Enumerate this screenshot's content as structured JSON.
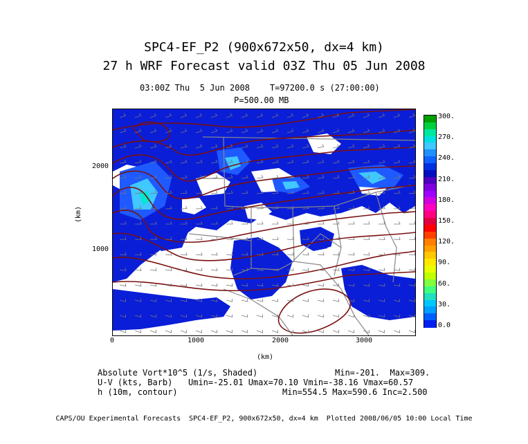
{
  "title": {
    "line1": "SPC4-EF_P2 (900x672x50, dx=4 km)",
    "line2": "27 h WRF Forecast valid 03Z Thu 05 Jun 2008"
  },
  "header": {
    "time_line": "03:00Z Thu  5 Jun 2008    T=97200.0 s (27:00:00)",
    "level": "P=500.00 MB"
  },
  "axes": {
    "y_label": "(km)",
    "x_label": "(km)",
    "x_ticks": [
      "0",
      "1000",
      "2000",
      "3000"
    ],
    "y_ticks": [
      "1000",
      "2000"
    ],
    "x_range": [
      0,
      3600
    ],
    "y_range": [
      0,
      2688
    ]
  },
  "colorbar": {
    "labels": [
      "300.",
      "270.",
      "240.",
      "210.",
      "180.",
      "150.",
      "120.",
      "90.",
      "60.",
      "30.",
      "0.0"
    ],
    "colors": [
      "#00a000",
      "#00d040",
      "#00e8a0",
      "#00e0e0",
      "#40c8ff",
      "#2090ff",
      "#1060ff",
      "#0030e0",
      "#0010c0",
      "#5000c0",
      "#8000e0",
      "#a000ff",
      "#d000e0",
      "#ff00c0",
      "#ff0080",
      "#e00040",
      "#ff0000",
      "#ff4000",
      "#ff8000",
      "#ffa000",
      "#ffc800",
      "#ffe800",
      "#e8ff00",
      "#c0ff00",
      "#80ff40",
      "#40ff80",
      "#20e0c0",
      "#00c8ff",
      "#00a0ff",
      "#0060ff",
      "#0020f0"
    ]
  },
  "fields": {
    "vort_label": "Absolute Vort*10^5 (1/s, Shaded)",
    "vort_stats": "Min=-201.  Max=309.",
    "wind_label": "U-V (kts, Barb)",
    "wind_stats": "Umin=-25.01 Umax=70.10 Vmin=-38.16 Vmax=60.57",
    "height_label": "h (10m, contour)",
    "height_stats": "Min=554.5 Max=590.6 Inc=2.500"
  },
  "footer": "CAPS/OU Experimental Forecasts  SPC4-EF_P2, 900x672x50, dx=4 km  Plotted 2008/06/05 10:00 Local Time",
  "map_colors": {
    "vort_dark": "#0a1ed8",
    "vort_mid": "#1e5aff",
    "vort_light": "#40c8ff",
    "vort_cyan": "#00e8d0",
    "contour": "#7a1010",
    "border": "#888888"
  }
}
